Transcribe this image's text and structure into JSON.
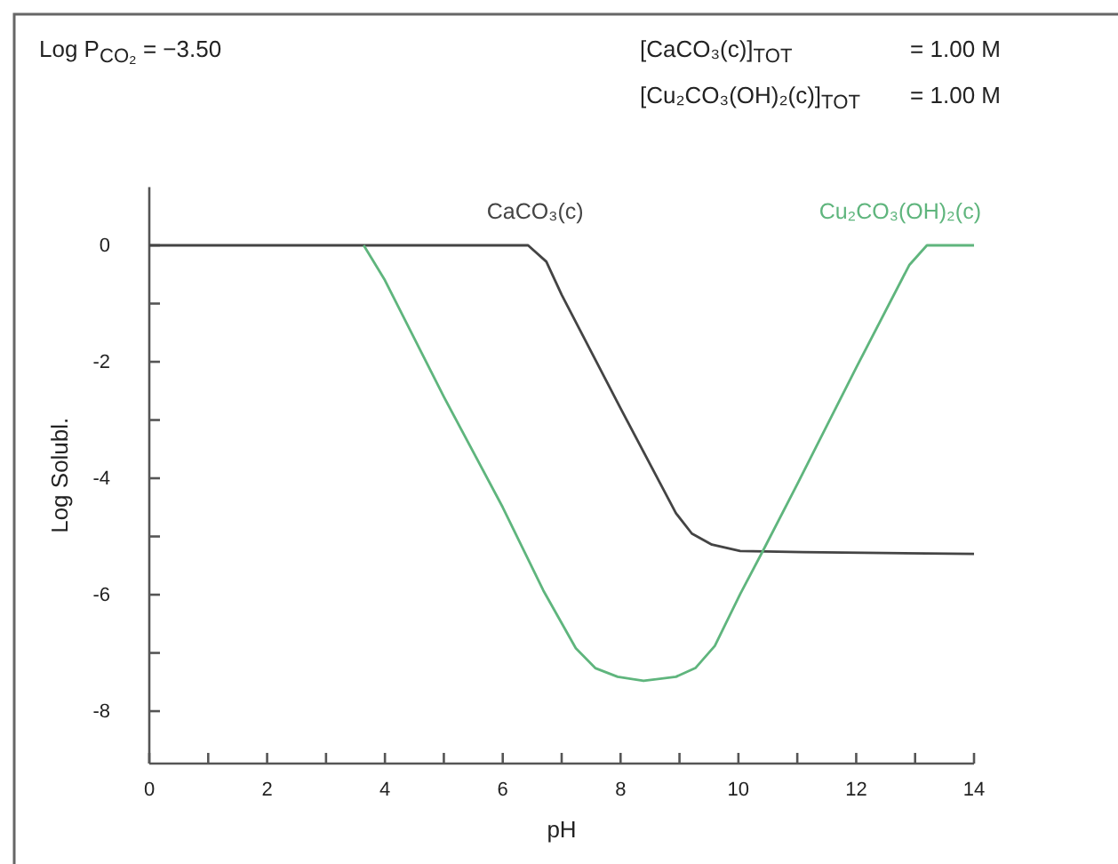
{
  "chart_data": {
    "type": "line",
    "xlabel": "pH",
    "ylabel": "Log Solubl.",
    "annotations": [
      "Log P$_{CO₂}$ = −3.50",
      "[CaCO₃(c)]$_{TOT}$",
      "= 1.00 M",
      "[Cu₂CO₃(OH)₂(c)]$_{TOT}$",
      "= 1.00 M"
    ],
    "xlim": [
      0,
      14
    ],
    "ylim": [
      -8.9,
      1
    ],
    "xticks": [
      0,
      {
        "value": 1,
        "label": null
      },
      2,
      {
        "value": 3,
        "label": null
      },
      4,
      {
        "value": 5,
        "label": null
      },
      6,
      {
        "value": 7,
        "label": null
      },
      8,
      {
        "value": 9,
        "label": null
      },
      10,
      {
        "value": 11,
        "label": null
      },
      12,
      {
        "value": 13,
        "label": null
      },
      14
    ],
    "yticks": [
      -8,
      {
        "value": -7,
        "label": null
      },
      -6,
      {
        "value": -5,
        "label": null
      },
      -4,
      {
        "value": -3,
        "label": null
      },
      -2,
      {
        "value": -1,
        "label": null
      },
      0
    ],
    "grid": false,
    "legend": false,
    "marker": "none",
    "line_style": "solid",
    "series": [
      {
        "name": "CaCO₃(c)",
        "color": "#444444",
        "x": [
          0,
          6.43,
          6.74,
          7,
          8,
          8.94,
          9.21,
          9.55,
          10.03,
          11.09,
          14
        ],
        "values": [
          0,
          0,
          -0.28,
          -0.85,
          -2.8,
          -4.6,
          -4.95,
          -5.14,
          -5.25,
          -5.27,
          -5.3
        ]
      },
      {
        "name": "Cu₂CO₃(OH)₂(c)",
        "color": "#5fb57d",
        "x": [
          3.64,
          4,
          5,
          6,
          6.69,
          7.24,
          7.57,
          7.95,
          8.39,
          8.94,
          9.27,
          9.6,
          10.03,
          10.42,
          11,
          12,
          12.9,
          13.2,
          14
        ],
        "values": [
          0,
          -0.6,
          -2.6,
          -4.5,
          -5.93,
          -6.92,
          -7.26,
          -7.41,
          -7.48,
          -7.41,
          -7.26,
          -6.88,
          -5.99,
          -5.24,
          -4.1,
          -2.1,
          -0.34,
          0,
          0
        ]
      }
    ]
  }
}
